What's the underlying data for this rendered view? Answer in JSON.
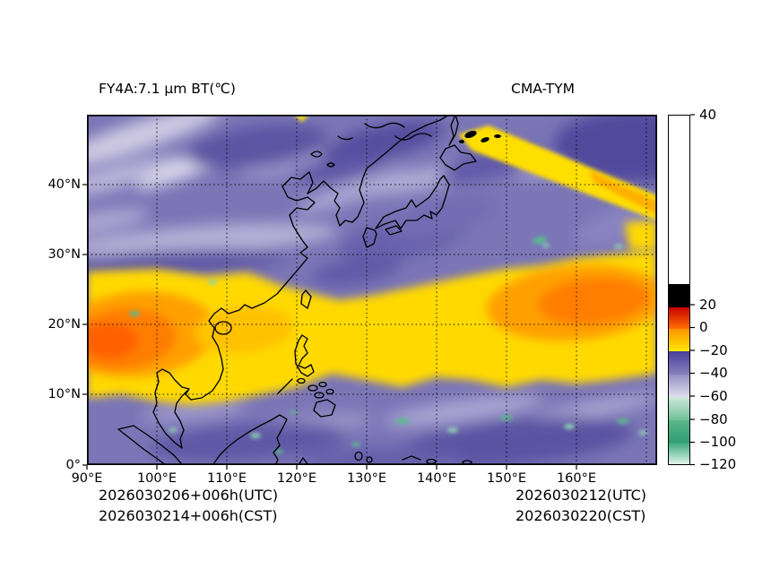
{
  "figure": {
    "title_left": "FY4A:7.1 μm BT(℃)",
    "title_right": "CMA-TYM",
    "footer_left_line1": "2026030206+006h(UTC)",
    "footer_left_line2": "2026030214+006h(CST)",
    "footer_right_line1": "2026030212(UTC)",
    "footer_right_line2": "2026030220(CST)"
  },
  "axes": {
    "x_ticks": [
      "90°E",
      "100°E",
      "110°E",
      "120°E",
      "130°E",
      "140°E",
      "150°E",
      "160°E"
    ],
    "y_ticks": [
      "40°N",
      "30°N",
      "20°N",
      "10°N",
      "0°"
    ]
  },
  "colorbar": {
    "tick_labels": [
      "40",
      "20",
      "0",
      "−20",
      "−40",
      "−60",
      "−80",
      "−100",
      "−120"
    ],
    "segments": [
      {
        "height": 188,
        "from": "#ffffff",
        "to": "#ffffff"
      },
      {
        "height": 26,
        "from": "#000000",
        "to": "#000000"
      },
      {
        "height": 24,
        "from": "#c80000",
        "to": "#ff6f00"
      },
      {
        "height": 25,
        "from": "#ff9300",
        "to": "#ffe800"
      },
      {
        "height": 26,
        "from": "#483e9b",
        "to": "#8781be"
      },
      {
        "height": 25,
        "from": "#948ec5",
        "to": "#e0deee"
      },
      {
        "height": 26,
        "from": "#cfe9da",
        "to": "#6fc096"
      },
      {
        "height": 25,
        "from": "#5bb78a",
        "to": "#2f9e71"
      },
      {
        "height": 26,
        "from": "#3aa87c",
        "to": "#eef9f4"
      }
    ]
  },
  "chart_data": {
    "type": "heatmap",
    "title": "FY4A:7.1 μm BT(℃)",
    "model_label": "CMA-TYM",
    "valid_time_labels": [
      "2026030206+006h(UTC)",
      "2026030214+006h(CST)",
      "2026030212(UTC)",
      "2026030220(CST)"
    ],
    "x_axis": {
      "unit": "°E",
      "ticks": [
        90,
        100,
        110,
        120,
        130,
        140,
        150,
        160
      ],
      "range": [
        90,
        171.5
      ],
      "grid": "dotted"
    },
    "y_axis": {
      "unit": "°N",
      "ticks": [
        0,
        10,
        20,
        30,
        40
      ],
      "range": [
        0,
        50
      ],
      "grid": "dotted"
    },
    "colorbar": {
      "unit": "℃",
      "ticks": [
        40,
        20,
        0,
        -20,
        -40,
        -60,
        -80,
        -100,
        -120
      ],
      "range": [
        -120,
        40
      ],
      "palette_order_top_to_bottom": [
        "white (>~22)",
        "black (~22 to ~15)",
        "red-orange (~15 to 0)",
        "orange-yellow (0 to -20)",
        "dark purple (-20 to -40)",
        "lavender (-40 to -60)",
        "pale green to green (-60 to -80)",
        "deep green (-80 to -100)",
        "green fading to pale mint (-100 to -120)"
      ]
    },
    "field_features": [
      "broad warm band (BT ~0 to -20℃, yellow/orange) spanning about 8–28°N across the whole domain",
      "warmest orange cores near 91–102°E 14–25°N and 148–168°E 17–28°N",
      "narrow bright warm streak from ~144°E 47°N southeastward to ~167°E 37°N with BT>20℃ black flecks on its NW edge",
      "cooler purple/lavender cloud field (-30 to -55℃) over mid-latitudes and the equatorial strip",
      "isolated very cold tops (<-60℃, green specks) near 97°E 22°N, 154°E 32°N and scattered 0–8°N"
    ]
  }
}
